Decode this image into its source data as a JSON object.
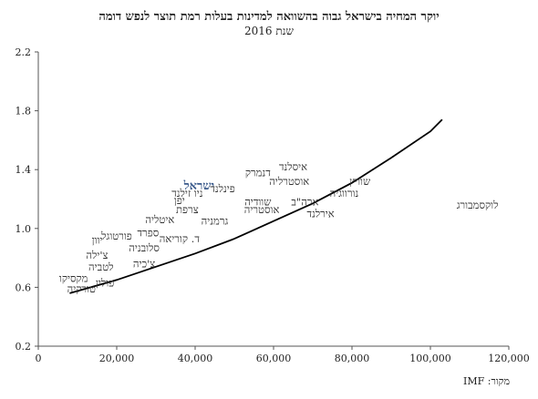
{
  "title": "יוקר המחיה בישראל גבוה בהשוואה למדינות בעלות רמת תוצר לנפש דומה",
  "subtitle": "שנת 2016",
  "source": "מקור: IMF",
  "colors": {
    "highlight": "#3b5b8c",
    "axis": "#555555",
    "trend": "#000000",
    "text": "#333333"
  },
  "chart_data": {
    "type": "scatter",
    "title": "יוקר המחיה בישראל גבוה בהשוואה למדינות בעלות רמת תוצר לנפש דומה",
    "subtitle": "שנת 2016",
    "xlabel": "",
    "ylabel": "",
    "xlim": [
      0,
      120000
    ],
    "ylim": [
      0.2,
      2.2
    ],
    "xticks": [
      "0",
      "20,000",
      "40,000",
      "60,000",
      "80,000",
      "100,000",
      "120,000"
    ],
    "yticks": [
      "0.2",
      "0.6",
      "1.0",
      "1.4",
      "1.8",
      "2.2"
    ],
    "grid": false,
    "highlight": "ישראל",
    "points": [
      {
        "name": "שוויץ",
        "x": 82000,
        "y": 1.32
      },
      {
        "name": "איסלנד",
        "x": 65000,
        "y": 1.42
      },
      {
        "name": "דנמרק",
        "x": 56000,
        "y": 1.38
      },
      {
        "name": "ישראל",
        "x": 41000,
        "y": 1.29
      },
      {
        "name": "אוסטרליה",
        "x": 64000,
        "y": 1.32
      },
      {
        "name": "פינלנד",
        "x": 47000,
        "y": 1.27
      },
      {
        "name": "ניו זילנד",
        "x": 38000,
        "y": 1.24
      },
      {
        "name": "נורווגיה",
        "x": 78000,
        "y": 1.24
      },
      {
        "name": "יפן",
        "x": 36000,
        "y": 1.19
      },
      {
        "name": "שוודיה",
        "x": 56000,
        "y": 1.18
      },
      {
        "name": "ארה\"ב",
        "x": 68000,
        "y": 1.18
      },
      {
        "name": "לוקסמבורג",
        "x": 112000,
        "y": 1.16
      },
      {
        "name": "צרפת",
        "x": 38000,
        "y": 1.13
      },
      {
        "name": "אוסטריה",
        "x": 57000,
        "y": 1.13
      },
      {
        "name": "אירלנד",
        "x": 72000,
        "y": 1.1
      },
      {
        "name": "איטליה",
        "x": 31000,
        "y": 1.06
      },
      {
        "name": "גרמניה",
        "x": 45000,
        "y": 1.05
      },
      {
        "name": "ספרד",
        "x": 28000,
        "y": 0.97
      },
      {
        "name": "פורטוגל",
        "x": 20000,
        "y": 0.95
      },
      {
        "name": "ד. קוריאה",
        "x": 36000,
        "y": 0.93
      },
      {
        "name": "יוון",
        "x": 15000,
        "y": 0.92
      },
      {
        "name": "סלובניה",
        "x": 27000,
        "y": 0.87
      },
      {
        "name": "צ'ילה",
        "x": 15000,
        "y": 0.82
      },
      {
        "name": "לטביה",
        "x": 16000,
        "y": 0.74
      },
      {
        "name": "צ'כיה",
        "x": 27000,
        "y": 0.76
      },
      {
        "name": "מקסיקו",
        "x": 9000,
        "y": 0.66
      },
      {
        "name": "פולין",
        "x": 17000,
        "y": 0.63
      },
      {
        "name": "טורקיה",
        "x": 11000,
        "y": 0.59
      }
    ],
    "trendline": {
      "x": [
        8000,
        20000,
        30000,
        40000,
        50000,
        60000,
        70000,
        80000,
        90000,
        100000,
        103000
      ],
      "y": [
        0.56,
        0.65,
        0.74,
        0.83,
        0.93,
        1.05,
        1.17,
        1.31,
        1.48,
        1.66,
        1.74
      ]
    }
  }
}
